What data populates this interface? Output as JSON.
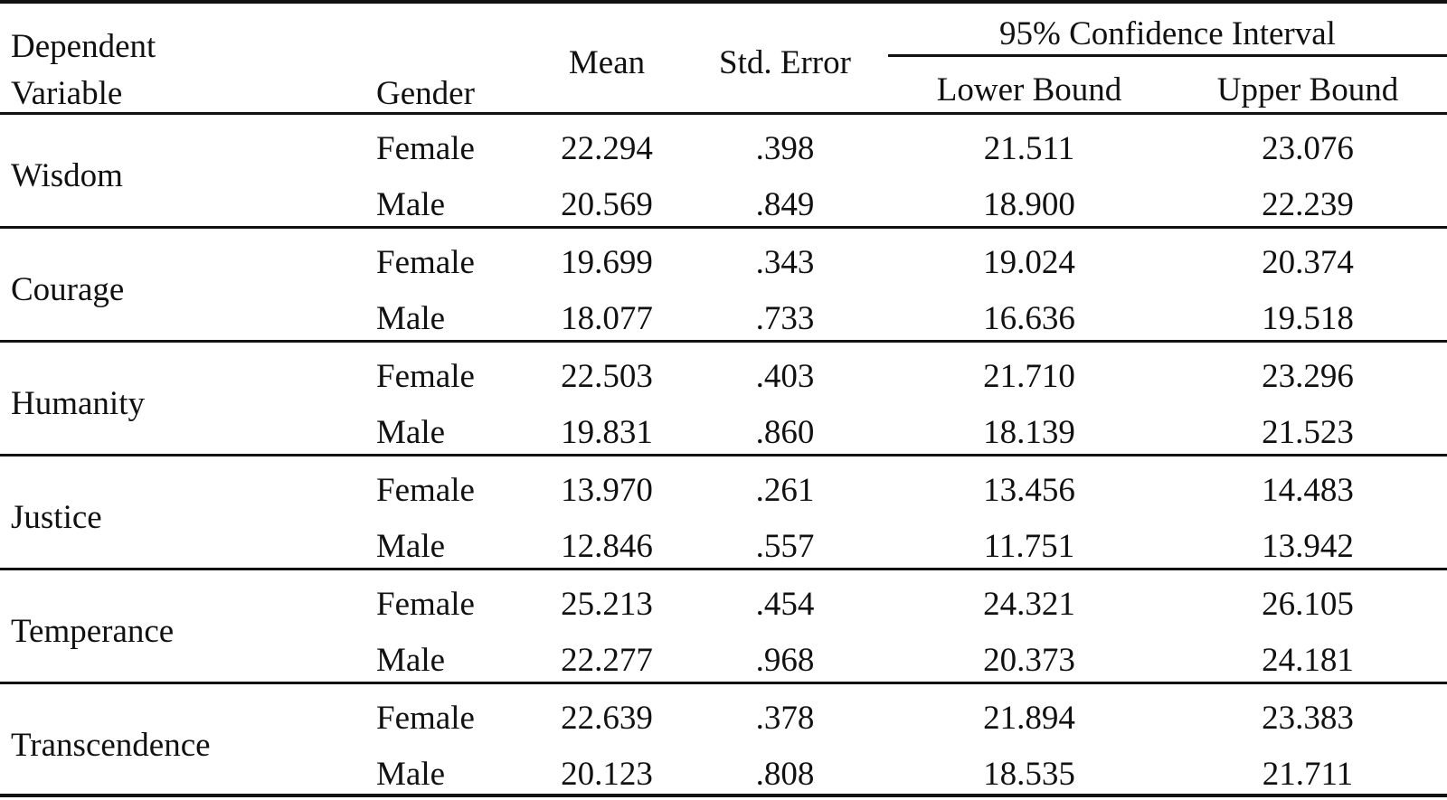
{
  "table": {
    "header": {
      "dependent_variable_line1": "Dependent",
      "dependent_variable_line2": "Variable",
      "gender": "Gender",
      "mean": "Mean",
      "std_error": "Std. Error",
      "ci": "95% Confidence Interval",
      "lower_bound": "Lower Bound",
      "upper_bound": "Upper Bound"
    },
    "groups": [
      {
        "variable": "Wisdom",
        "rows": [
          {
            "gender": "Female",
            "mean": "22.294",
            "std_error": ".398",
            "lower": "21.511",
            "upper": "23.076"
          },
          {
            "gender": "Male",
            "mean": "20.569",
            "std_error": ".849",
            "lower": "18.900",
            "upper": "22.239"
          }
        ]
      },
      {
        "variable": "Courage",
        "rows": [
          {
            "gender": "Female",
            "mean": "19.699",
            "std_error": ".343",
            "lower": "19.024",
            "upper": "20.374"
          },
          {
            "gender": "Male",
            "mean": "18.077",
            "std_error": ".733",
            "lower": "16.636",
            "upper": "19.518"
          }
        ]
      },
      {
        "variable": "Humanity",
        "rows": [
          {
            "gender": "Female",
            "mean": "22.503",
            "std_error": ".403",
            "lower": "21.710",
            "upper": "23.296"
          },
          {
            "gender": "Male",
            "mean": "19.831",
            "std_error": ".860",
            "lower": "18.139",
            "upper": "21.523"
          }
        ]
      },
      {
        "variable": "Justice",
        "rows": [
          {
            "gender": "Female",
            "mean": "13.970",
            "std_error": ".261",
            "lower": "13.456",
            "upper": "14.483"
          },
          {
            "gender": "Male",
            "mean": "12.846",
            "std_error": ".557",
            "lower": "11.751",
            "upper": "13.942"
          }
        ]
      },
      {
        "variable": "Temperance",
        "rows": [
          {
            "gender": "Female",
            "mean": "25.213",
            "std_error": ".454",
            "lower": "24.321",
            "upper": "26.105"
          },
          {
            "gender": "Male",
            "mean": "22.277",
            "std_error": ".968",
            "lower": "20.373",
            "upper": "24.181"
          }
        ]
      },
      {
        "variable": "Transcendence",
        "rows": [
          {
            "gender": "Female",
            "mean": "22.639",
            "std_error": ".378",
            "lower": "21.894",
            "upper": "23.383"
          },
          {
            "gender": "Male",
            "mean": "20.123",
            "std_error": ".808",
            "lower": "18.535",
            "upper": "21.711"
          }
        ]
      }
    ]
  }
}
